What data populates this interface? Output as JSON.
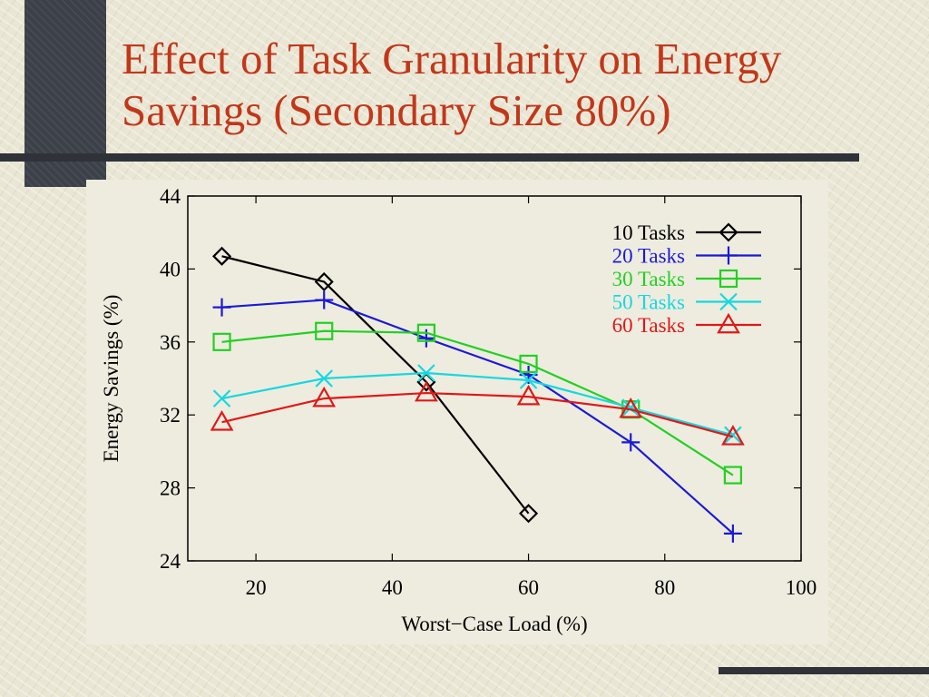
{
  "slide": {
    "title": "Effect of Task Granularity on Energy Savings (Secondary Size 80%)"
  },
  "chart_data": {
    "type": "line",
    "xlabel": "Worst−Case Load (%)",
    "ylabel": "Energy Savings (%)",
    "xlim": [
      10,
      100
    ],
    "ylim": [
      24,
      44
    ],
    "xticks": [
      20,
      40,
      60,
      80,
      100
    ],
    "yticks": [
      24,
      28,
      32,
      36,
      40,
      44
    ],
    "grid": false,
    "legend_position": "top-right",
    "series": [
      {
        "name": "10 Tasks",
        "color": "#000000",
        "marker": "diamond",
        "x": [
          15,
          30,
          45,
          60
        ],
        "y": [
          40.7,
          39.3,
          33.8,
          26.6
        ]
      },
      {
        "name": "20 Tasks",
        "color": "#1a1ad6",
        "marker": "plus",
        "x": [
          15,
          30,
          45,
          60,
          75,
          90
        ],
        "y": [
          37.9,
          38.3,
          36.2,
          34.2,
          30.5,
          25.5
        ]
      },
      {
        "name": "30 Tasks",
        "color": "#22d022",
        "marker": "square",
        "x": [
          15,
          30,
          45,
          60,
          75,
          90
        ],
        "y": [
          36.0,
          36.6,
          36.5,
          34.8,
          32.3,
          28.7
        ]
      },
      {
        "name": "50 Tasks",
        "color": "#16d8e0",
        "marker": "cross",
        "x": [
          15,
          30,
          45,
          60,
          75,
          90
        ],
        "y": [
          32.9,
          34.0,
          34.3,
          33.9,
          32.4,
          30.9
        ]
      },
      {
        "name": "60 Tasks",
        "color": "#e01818",
        "marker": "triangle",
        "x": [
          15,
          30,
          45,
          60,
          75,
          90
        ],
        "y": [
          31.6,
          32.9,
          33.2,
          33.0,
          32.3,
          30.8
        ]
      }
    ]
  }
}
